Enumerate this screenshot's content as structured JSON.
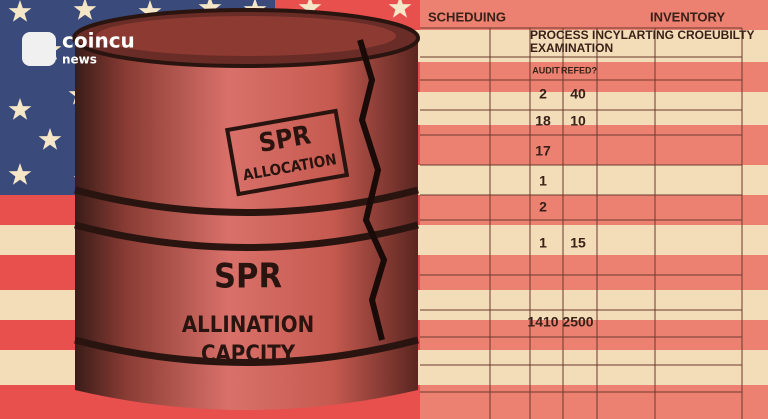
{
  "logo": {
    "brand": "coincu",
    "sub": "news"
  },
  "table": {
    "headers": [
      "SCHEDUING",
      "INVENTORY"
    ],
    "title": [
      "PROCESS INCYLARTING CROEUBILTY",
      "EXAMINATION"
    ],
    "columns": [
      "AUDIT",
      "REFED?"
    ],
    "rows": [
      [
        "2",
        "40"
      ],
      [
        "18",
        "10"
      ],
      [
        "17"
      ],
      [
        "1"
      ],
      [
        "2"
      ],
      [
        "1",
        "15"
      ],
      [
        "1410",
        "2500"
      ]
    ]
  },
  "barrel": {
    "stamp": [
      "SPR",
      "ALLOCATION"
    ],
    "label": [
      "SPR",
      "ALLINATION",
      "CAPCITY"
    ]
  }
}
